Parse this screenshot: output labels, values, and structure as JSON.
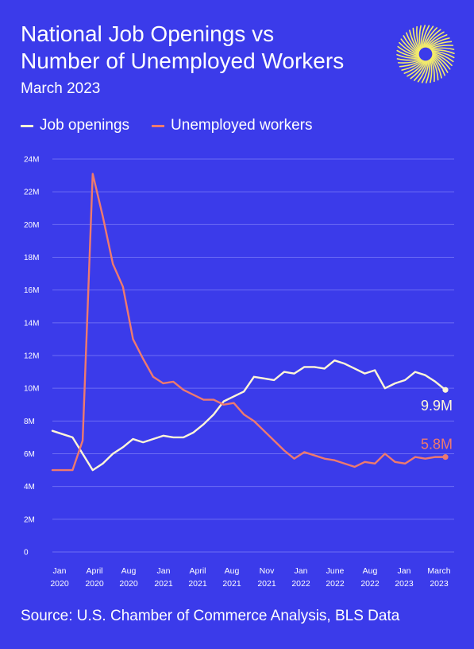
{
  "header": {
    "title_line1": "National Job Openings vs",
    "title_line2": "Number of Unemployed Workers",
    "subtitle": "March 2023"
  },
  "logo": {
    "icon": "sunburst-logo-icon",
    "color": "#f4ec6a"
  },
  "footer": {
    "source": "Source: U.S. Chamber of Commerce Analysis, BLS Data"
  },
  "colors": {
    "background": "#3b3bea",
    "job_openings": "#fff6d8",
    "unemployed": "#ee7a6e",
    "grid": "#6c6cf4",
    "text": "#ffffff"
  },
  "chart_data": {
    "type": "line",
    "title": "National Job Openings vs Number of Unemployed Workers",
    "subtitle": "March 2023",
    "legend_position": "top-left",
    "grid": true,
    "ylim": [
      0,
      24
    ],
    "y_ticks": [
      "0",
      "2M",
      "4M",
      "6M",
      "8M",
      "10M",
      "12M",
      "14M",
      "16M",
      "18M",
      "20M",
      "22M",
      "24M"
    ],
    "x_ticks": [
      {
        "month": "Jan",
        "year": "2020"
      },
      {
        "month": "April",
        "year": "2020"
      },
      {
        "month": "Aug",
        "year": "2020"
      },
      {
        "month": "Jan",
        "year": "2021"
      },
      {
        "month": "April",
        "year": "2021"
      },
      {
        "month": "Aug",
        "year": "2021"
      },
      {
        "month": "Nov",
        "year": "2021"
      },
      {
        "month": "Jan",
        "year": "2022"
      },
      {
        "month": "June",
        "year": "2022"
      },
      {
        "month": "Aug",
        "year": "2022"
      },
      {
        "month": "Jan",
        "year": "2023"
      },
      {
        "month": "March",
        "year": "2023"
      }
    ],
    "x": [
      "2019-12",
      "2020-01",
      "2020-02",
      "2020-03",
      "2020-04",
      "2020-05",
      "2020-06",
      "2020-07",
      "2020-08",
      "2020-09",
      "2020-10",
      "2020-11",
      "2020-12",
      "2021-01",
      "2021-02",
      "2021-03",
      "2021-04",
      "2021-05",
      "2021-06",
      "2021-07",
      "2021-08",
      "2021-09",
      "2021-10",
      "2021-11",
      "2021-12",
      "2022-01",
      "2022-02",
      "2022-03",
      "2022-04",
      "2022-05",
      "2022-06",
      "2022-07",
      "2022-08",
      "2022-09",
      "2022-10",
      "2022-11",
      "2022-12",
      "2023-01",
      "2023-02",
      "2023-03"
    ],
    "series": [
      {
        "name": "Job openings",
        "color": "#fff6d8",
        "end_label": "9.9M",
        "values": [
          7.4,
          7.2,
          7.0,
          6.0,
          5.0,
          5.4,
          6.0,
          6.4,
          6.9,
          6.7,
          6.9,
          7.1,
          7.0,
          7.0,
          7.3,
          7.8,
          8.4,
          9.2,
          9.5,
          9.8,
          10.7,
          10.6,
          10.5,
          11.0,
          10.9,
          11.3,
          11.3,
          11.2,
          11.7,
          11.5,
          11.2,
          10.9,
          11.1,
          10.0,
          10.3,
          10.5,
          11.0,
          10.8,
          10.4,
          9.9
        ]
      },
      {
        "name": "Unemployed workers",
        "color": "#ee7a6e",
        "end_label": "5.8M",
        "values": [
          5.0,
          5.0,
          5.0,
          6.8,
          23.1,
          20.5,
          17.6,
          16.2,
          13.0,
          11.8,
          10.7,
          10.3,
          10.4,
          9.9,
          9.6,
          9.3,
          9.3,
          9.0,
          9.1,
          8.4,
          8.0,
          7.4,
          6.8,
          6.2,
          5.7,
          6.1,
          5.9,
          5.7,
          5.6,
          5.4,
          5.2,
          5.5,
          5.4,
          6.0,
          5.5,
          5.4,
          5.8,
          5.7,
          5.8,
          5.8
        ]
      }
    ]
  }
}
